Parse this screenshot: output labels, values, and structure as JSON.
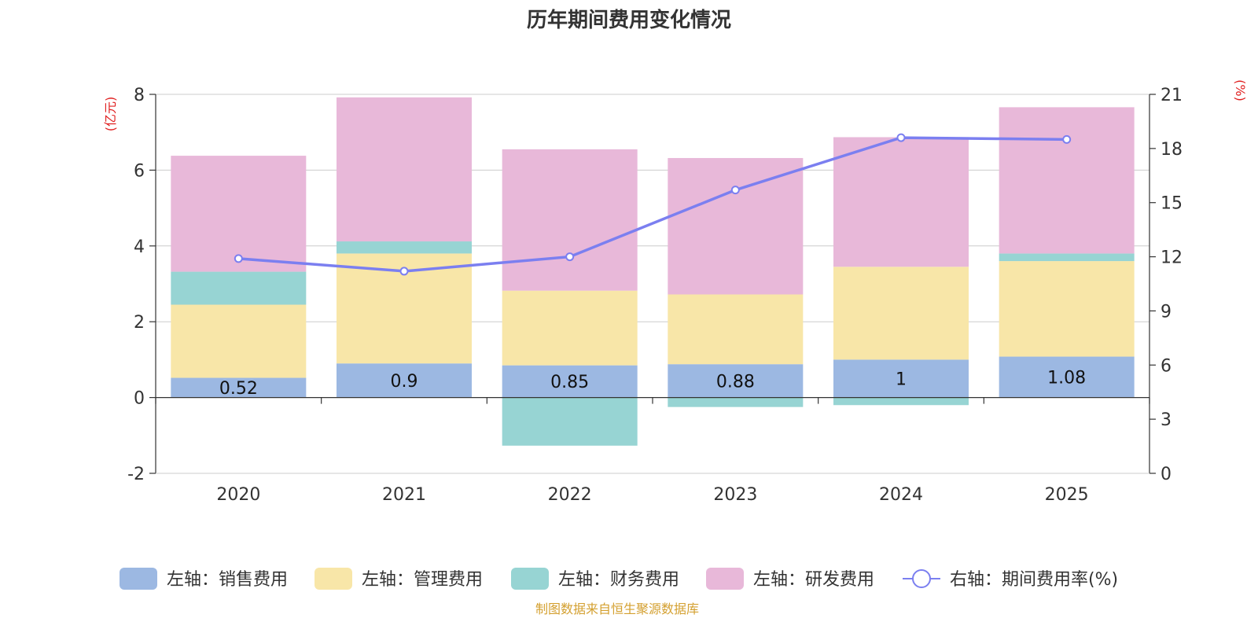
{
  "chart_data": {
    "type": "bar",
    "title": "历年期间费用变化情况",
    "categories": [
      "2020",
      "2021",
      "2022",
      "2023",
      "2024",
      "2025"
    ],
    "left_axis": {
      "unit": "(亿元)",
      "ylim": [
        -2,
        8
      ],
      "ticks": [
        "8",
        "6",
        "4",
        "2",
        "0",
        "-2"
      ]
    },
    "right_axis": {
      "unit": "(%)",
      "ylim": [
        0,
        21
      ],
      "ticks": [
        "21",
        "18",
        "15",
        "12",
        "9",
        "6",
        "3",
        "0"
      ]
    },
    "series": [
      {
        "name": "左轴：销售费用",
        "axis": "left",
        "kind": "stack",
        "color": "#9cb8e2",
        "values": [
          0.52,
          0.9,
          0.85,
          0.88,
          1,
          1.08
        ],
        "labels": [
          "0.52",
          "0.9",
          "0.85",
          "0.88",
          "1",
          "1.08"
        ]
      },
      {
        "name": "左轴：管理费用",
        "axis": "left",
        "kind": "stack",
        "color": "#f8e6a8",
        "values": [
          1.93,
          2.9,
          1.97,
          1.84,
          2.45,
          2.52
        ]
      },
      {
        "name": "左轴：财务费用",
        "axis": "left",
        "kind": "stack",
        "color": "#97d4d3",
        "values": [
          0.87,
          0.32,
          -1.27,
          -0.25,
          -0.2,
          0.2
        ]
      },
      {
        "name": "左轴：研发费用",
        "axis": "left",
        "kind": "stack",
        "color": "#e8b8d9",
        "values": [
          3.06,
          3.8,
          3.73,
          3.6,
          3.42,
          3.86
        ]
      },
      {
        "name": "右轴：期间费用率(%)",
        "axis": "right",
        "kind": "line",
        "color": "#7b7ff0",
        "values": [
          11.9,
          11.2,
          12.0,
          15.7,
          18.6,
          18.5
        ]
      }
    ],
    "grid": true,
    "legend": "bottom"
  },
  "source": "制图数据来自恒生聚源数据库",
  "colors": {
    "left_unit": "#e02020",
    "right_unit": "#e02020",
    "source": "#d4a030",
    "axis": "#333333",
    "grid": "#cccccc"
  }
}
